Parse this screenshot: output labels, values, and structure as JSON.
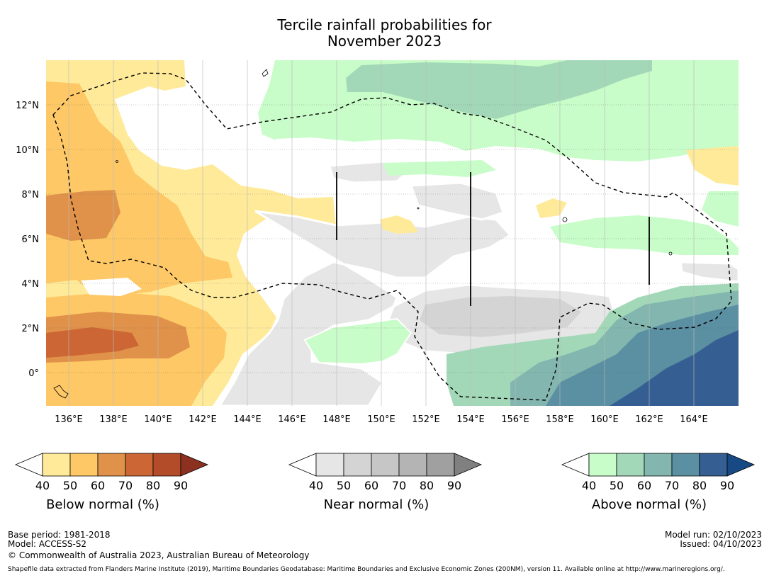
{
  "title": {
    "line1": "Tercile rainfall probabilities for",
    "line2": "November 2023"
  },
  "lat_labels": [
    "12°N",
    "10°N",
    "8°N",
    "6°N",
    "4°N",
    "2°N",
    "0°"
  ],
  "lon_labels": [
    "136°E",
    "138°E",
    "140°E",
    "142°E",
    "144°E",
    "146°E",
    "148°E",
    "150°E",
    "152°E",
    "154°E",
    "156°E",
    "158°E",
    "160°E",
    "162°E",
    "164°E"
  ],
  "colorbars": [
    {
      "label": "Below normal (%)",
      "ticks": [
        "40",
        "50",
        "60",
        "70",
        "80",
        "90"
      ],
      "colors": [
        "#ffffff",
        "#ffea9a",
        "#fdc865",
        "#e0924a",
        "#cc6634",
        "#b34c28",
        "#8c3020"
      ]
    },
    {
      "label": "Near normal (%)",
      "ticks": [
        "40",
        "50",
        "60",
        "70",
        "80",
        "90"
      ],
      "colors": [
        "#ffffff",
        "#e6e6e6",
        "#d4d4d4",
        "#c6c6c6",
        "#b4b4b4",
        "#a0a0a0",
        "#808080"
      ]
    },
    {
      "label": "Above normal (%)",
      "ticks": [
        "40",
        "50",
        "60",
        "70",
        "80",
        "90"
      ],
      "colors": [
        "#ffffff",
        "#c8fcc8",
        "#a2d8b8",
        "#82b6ae",
        "#5b8fa2",
        "#355f92",
        "#174a84"
      ]
    }
  ],
  "footer": {
    "base_period": "Base period: 1981-2018",
    "model": "Model: ACCESS-S2",
    "copyright": "© Commonwealth of Australia 2023, Australian Bureau of Meteorology",
    "model_run": "Model run: 02/10/2023",
    "issued": "Issued: 04/10/2023",
    "shapefile": "Shapefile data extracted from Flanders Marine Institute (2019), Maritime Boundaries Geodatabase: Maritime Boundaries and Exclusive Economic Zones (200NM), version 11. Available online at http://www.marineregions.org/."
  }
}
